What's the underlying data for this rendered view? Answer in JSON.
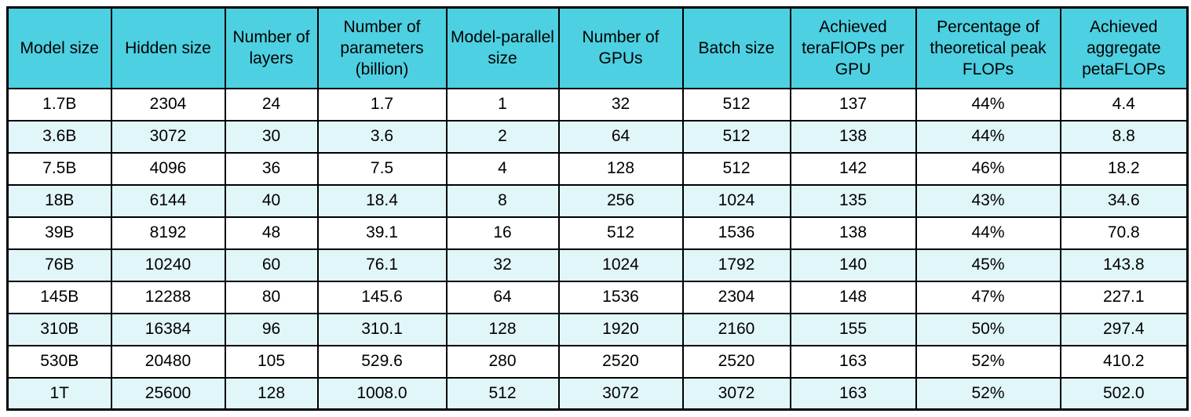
{
  "colors": {
    "header_bg": "#4DD0E1",
    "row_alt_bg": "#E1F6F9",
    "row_bg": "#FFFFFF",
    "border": "#000000",
    "text": "#000000"
  },
  "chart_data": {
    "type": "table",
    "columns": [
      "Model size",
      "Hidden size",
      "Number of layers",
      "Number of parameters (billion)",
      "Model-parallel size",
      "Number of GPUs",
      "Batch size",
      "Achieved teraFlOPs per GPU",
      "Percentage of theoretical peak FLOPs",
      "Achieved aggregate petaFLOPs"
    ],
    "rows": [
      [
        "1.7B",
        "2304",
        "24",
        "1.7",
        "1",
        "32",
        "512",
        "137",
        "44%",
        "4.4"
      ],
      [
        "3.6B",
        "3072",
        "30",
        "3.6",
        "2",
        "64",
        "512",
        "138",
        "44%",
        "8.8"
      ],
      [
        "7.5B",
        "4096",
        "36",
        "7.5",
        "4",
        "128",
        "512",
        "142",
        "46%",
        "18.2"
      ],
      [
        "18B",
        "6144",
        "40",
        "18.4",
        "8",
        "256",
        "1024",
        "135",
        "43%",
        "34.6"
      ],
      [
        "39B",
        "8192",
        "48",
        "39.1",
        "16",
        "512",
        "1536",
        "138",
        "44%",
        "70.8"
      ],
      [
        "76B",
        "10240",
        "60",
        "76.1",
        "32",
        "1024",
        "1792",
        "140",
        "45%",
        "143.8"
      ],
      [
        "145B",
        "12288",
        "80",
        "145.6",
        "64",
        "1536",
        "2304",
        "148",
        "47%",
        "227.1"
      ],
      [
        "310B",
        "16384",
        "96",
        "310.1",
        "128",
        "1920",
        "2160",
        "155",
        "50%",
        "297.4"
      ],
      [
        "530B",
        "20480",
        "105",
        "529.6",
        "280",
        "2520",
        "2520",
        "163",
        "52%",
        "410.2"
      ],
      [
        "1T",
        "25600",
        "128",
        "1008.0",
        "512",
        "3072",
        "3072",
        "163",
        "52%",
        "502.0"
      ]
    ]
  }
}
